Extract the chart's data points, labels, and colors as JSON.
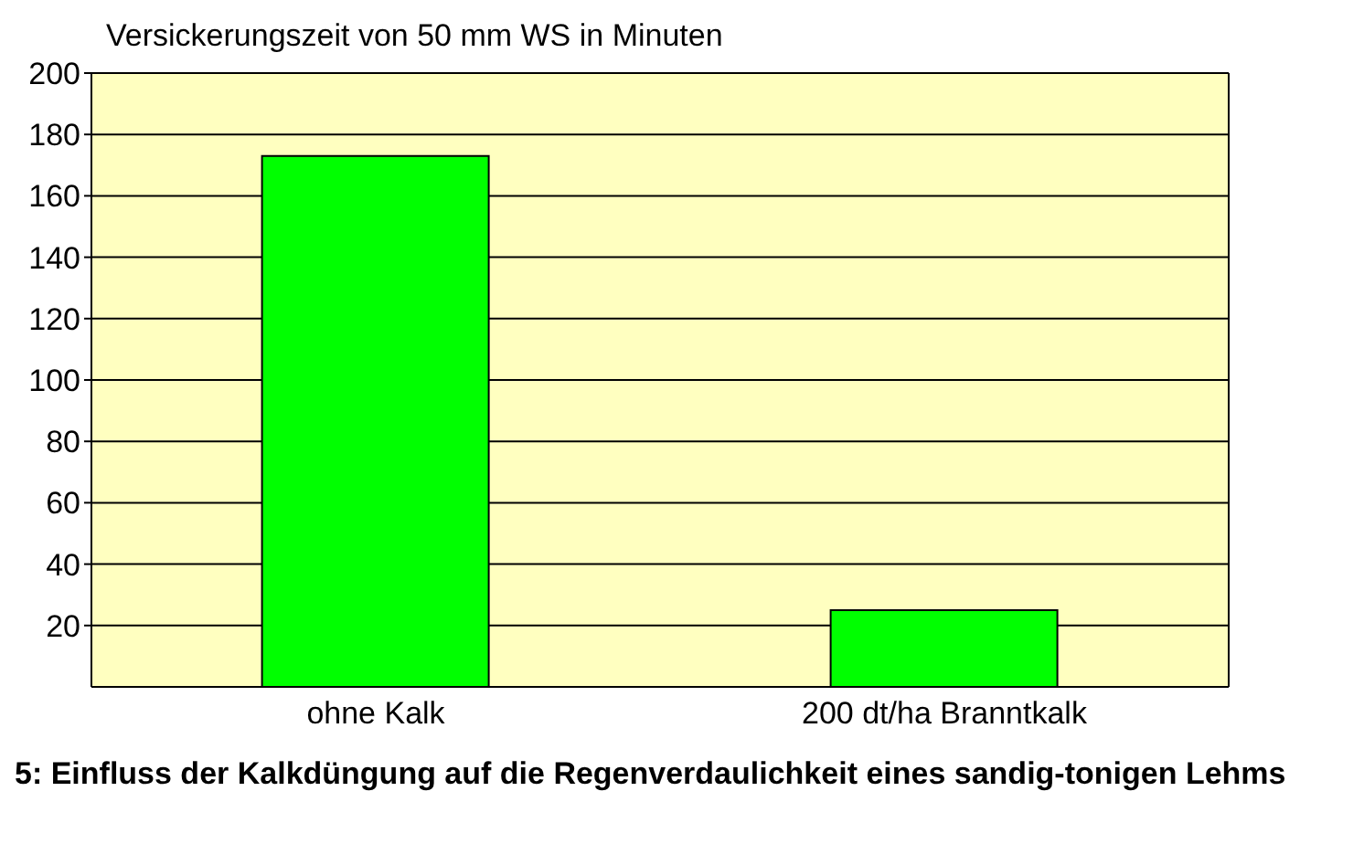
{
  "chart_data": {
    "type": "bar",
    "ylabel": "Versickerungszeit von 50 mm WS in Minuten",
    "annotations": [
      "5: Einfluss der Kalkdüngung auf die Regenverdaulichkeit eines sandig-tonigen Lehms"
    ],
    "categories": [
      "ohne Kalk",
      "200 dt/ha Branntkalk"
    ],
    "values": [
      173,
      25
    ],
    "color": "#00ff00",
    "ylim": [
      0,
      200
    ],
    "yticks": [
      20,
      40,
      60,
      80,
      100,
      120,
      140,
      160,
      180,
      200
    ],
    "grid": "y"
  }
}
